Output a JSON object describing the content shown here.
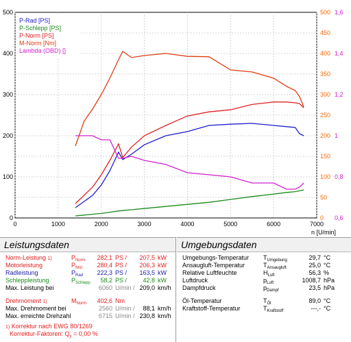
{
  "chart_data": {
    "type": "line",
    "x": [
      1400,
      1600,
      1800,
      2000,
      2200,
      2400,
      2500,
      2700,
      3000,
      3500,
      4000,
      4500,
      5000,
      5500,
      6000,
      6300,
      6500,
      6600,
      6700
    ],
    "xlabel": "n [U/min]",
    "xlim": [
      0,
      7000
    ],
    "xticks": [
      "0",
      "1000",
      "2000",
      "3000",
      "4000",
      "5000",
      "6000",
      "7000"
    ],
    "ylim_left": [
      0,
      500
    ],
    "yticks_left": [
      "0",
      "100",
      "200",
      "300",
      "400",
      "500"
    ],
    "ylim_right_torque": [
      0,
      500
    ],
    "yticks_right_torque": [
      "0",
      "50",
      "100",
      "150",
      "200",
      "250",
      "300",
      "350",
      "400",
      "450",
      "500"
    ],
    "ylim_right_lambda": [
      0.6,
      1.6
    ],
    "yticks_right_lambda": [
      "0,6",
      "0,8",
      "1",
      "1,2",
      "1,4",
      "1,6"
    ],
    "grid": true,
    "legend_position": "top-left",
    "series": [
      {
        "name": "P-Rad [PS]",
        "color": "#1a1acc",
        "axis": "left",
        "values": [
          25,
          40,
          55,
          80,
          115,
          160,
          142,
          155,
          178,
          200,
          210,
          225,
          228,
          230,
          225,
          222,
          220,
          205,
          200
        ]
      },
      {
        "name": "P-Schlepp [PS]",
        "color": "#1a8a1a",
        "axis": "left",
        "values": [
          5,
          7,
          9,
          11,
          14,
          17,
          18,
          20,
          23,
          28,
          33,
          38,
          45,
          52,
          58,
          62,
          64,
          66,
          68
        ]
      },
      {
        "name": "P-Norm [PS]",
        "color": "#e02020",
        "axis": "left",
        "values": [
          35,
          55,
          75,
          105,
          140,
          180,
          147,
          172,
          200,
          225,
          248,
          258,
          263,
          276,
          282,
          282,
          280,
          278,
          268
        ]
      },
      {
        "name": "M-Norm [Nm]",
        "color": "#e03a10",
        "axis": "torque",
        "values": [
          175,
          235,
          265,
          300,
          340,
          385,
          405,
          390,
          395,
          400,
          393,
          392,
          360,
          355,
          340,
          320,
          310,
          295,
          270
        ]
      },
      {
        "name": "Lambda (OBD) []",
        "color": "#d020d0",
        "axis": "lambda",
        "values": [
          1.0,
          1.0,
          1.0,
          0.98,
          0.98,
          0.89,
          0.89,
          0.9,
          0.88,
          0.86,
          0.82,
          0.81,
          0.8,
          0.77,
          0.77,
          0.74,
          0.74,
          0.75,
          0.77
        ]
      }
    ]
  },
  "left_panel": {
    "title": "Leistungsdaten",
    "rows": [
      {
        "label": "Norm-Leistung",
        "sup": "1)",
        "sym": "P",
        "sub": "Norm",
        "v1": "282,1",
        "u1": "PS",
        "v2": "207,5",
        "u2": "kW",
        "color": "#e02020"
      },
      {
        "label": "Motorleistung",
        "sup": "",
        "sym": "P",
        "sub": "Mot",
        "v1": "280,4",
        "u1": "PS",
        "v2": "206,3",
        "u2": "kW",
        "color": "#e02020"
      },
      {
        "label": "Radleistung",
        "sup": "",
        "sym": "P",
        "sub": "Rad",
        "v1": "222,3",
        "u1": "PS",
        "v2": "163,5",
        "u2": "kW",
        "color": "#1a1aa8"
      },
      {
        "label": "Schleppleistung",
        "sup": "",
        "sym": "P",
        "sub": "Schlepp",
        "v1": "58,2",
        "u1": "PS",
        "v2": "42,8",
        "u2": "kW",
        "color": "#1a8a1a"
      },
      {
        "label": "Max. Leistung bei",
        "sup": "",
        "sym": "",
        "sub": "",
        "v1": "6060",
        "u1": "U/min",
        "v2": "209,0",
        "u2": "km/h",
        "color": "#000000"
      },
      {
        "label": "Drehmoment",
        "sup": "1)",
        "sym": "M",
        "sub": "Norm",
        "v1": "402,6",
        "u1": "Nm",
        "v2": "",
        "u2": "",
        "color": "#e02020"
      },
      {
        "label": "Max. Drehmoment bei",
        "sup": "",
        "sym": "",
        "sub": "",
        "v1": "2560",
        "u1": "U/min",
        "v2": "88,1",
        "u2": "km/h",
        "color": "#000000"
      },
      {
        "label": "Max. erreichte Drehzahl",
        "sup": "",
        "sym": "",
        "sub": "",
        "v1": "6715",
        "u1": "U/min",
        "v2": "230,8",
        "u2": "km/h",
        "color": "#000000"
      }
    ],
    "footnote1_mark": "1)",
    "footnote1": "Korrektur nach EWG 80/1269",
    "footnote2": "Korrektur-Faktoren: Q",
    "footnote2_sub": "y",
    "footnote2_val": " =   0,00 %"
  },
  "right_panel": {
    "title": "Umgebungsdaten",
    "rows": [
      {
        "label": "Umgebungs-Temperatur",
        "sym": "T",
        "sub": "Umgebung",
        "v": "29,7",
        "u": "°C"
      },
      {
        "label": "Ansaugluft-Temperatur",
        "sym": "T",
        "sub": "Ansaugluft",
        "v": "25,0",
        "u": "°C"
      },
      {
        "label": "Relative Luftfeuchte",
        "sym": "H",
        "sub": "Luft",
        "v": "56,3",
        "u": "%"
      },
      {
        "label": "Luftdruck",
        "sym": "p",
        "sub": "Luft",
        "v": "1008,7",
        "u": "hPa"
      },
      {
        "label": "Dampfdruck",
        "sym": "p",
        "sub": "Dampf",
        "v": "23,5",
        "u": "hPa"
      },
      {
        "label": "Öl-Temperatur",
        "sym": "T",
        "sub": "Öl",
        "v": "89,0",
        "u": "°C"
      },
      {
        "label": "Kraftstoff-Temperatur",
        "sym": "T",
        "sub": "Kraftstoff",
        "v": "---,-",
        "u": "°C"
      }
    ]
  }
}
